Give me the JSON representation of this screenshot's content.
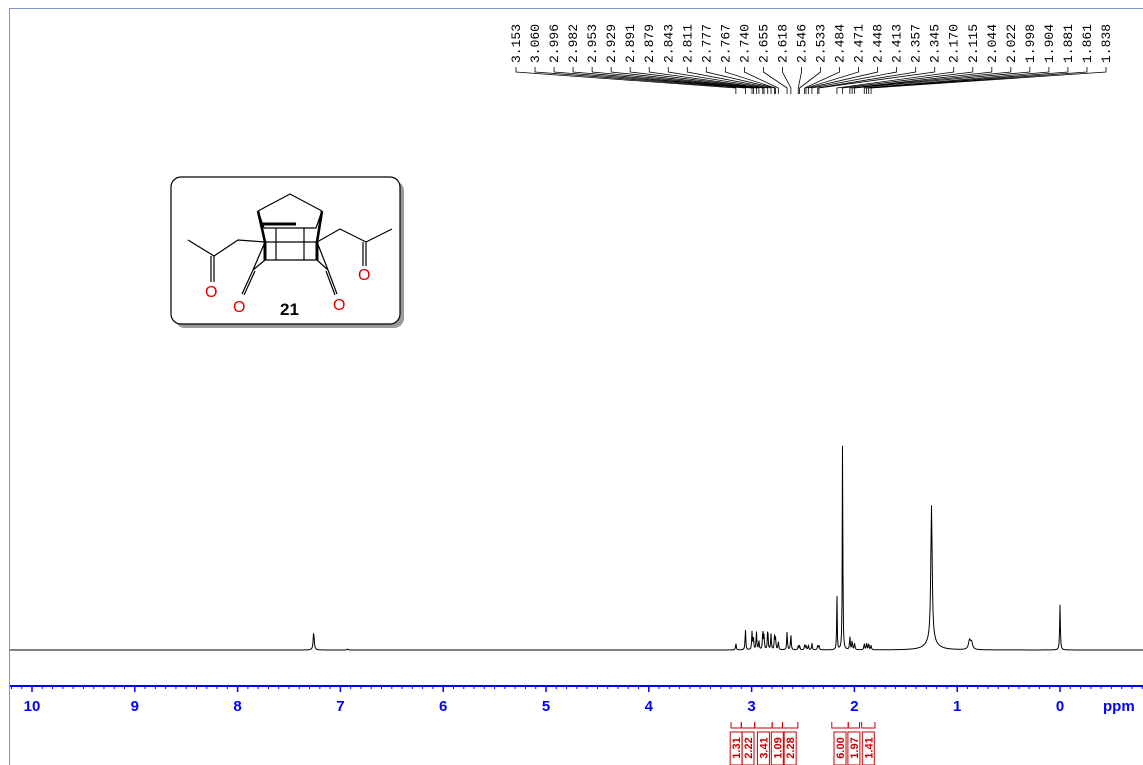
{
  "chart_data": {
    "type": "line",
    "xlabel": "ppm",
    "xlim": [
      10.25,
      -0.8
    ],
    "x_reversed": true,
    "x_ticks": [
      10,
      9,
      8,
      7,
      6,
      5,
      4,
      3,
      2,
      1,
      0
    ],
    "axis_color": "#0000ff",
    "trace_color": "#000000",
    "label_color": "#000000",
    "integral_color": "#cc0000",
    "frame_color": "#7c96c6",
    "peak_labels": [
      "3.153",
      "3.060",
      "2.996",
      "2.982",
      "2.953",
      "2.929",
      "2.891",
      "2.879",
      "2.843",
      "2.811",
      "2.777",
      "2.767",
      "2.740",
      "2.655",
      "2.618",
      "2.546",
      "2.533",
      "2.484",
      "2.471",
      "2.448",
      "2.413",
      "2.357",
      "2.345",
      "2.170",
      "2.115",
      "2.044",
      "2.022",
      "1.998",
      "1.904",
      "1.881",
      "1.861",
      "1.838"
    ],
    "peaks": [
      {
        "ppm": 7.26,
        "intensity": 0.08,
        "width": 0.006
      },
      {
        "ppm": 6.93,
        "intensity": 0.004,
        "width": 0.006
      },
      {
        "ppm": 3.153,
        "intensity": 0.03,
        "width": 0.004
      },
      {
        "ppm": 3.06,
        "intensity": 0.09,
        "width": 0.004
      },
      {
        "ppm": 2.996,
        "intensity": 0.08,
        "width": 0.004
      },
      {
        "ppm": 2.982,
        "intensity": 0.05,
        "width": 0.004
      },
      {
        "ppm": 2.953,
        "intensity": 0.08,
        "width": 0.004
      },
      {
        "ppm": 2.929,
        "intensity": 0.04,
        "width": 0.004
      },
      {
        "ppm": 2.891,
        "intensity": 0.09,
        "width": 0.004
      },
      {
        "ppm": 2.879,
        "intensity": 0.06,
        "width": 0.004
      },
      {
        "ppm": 2.843,
        "intensity": 0.1,
        "width": 0.004
      },
      {
        "ppm": 2.811,
        "intensity": 0.07,
        "width": 0.004
      },
      {
        "ppm": 2.777,
        "intensity": 0.06,
        "width": 0.004
      },
      {
        "ppm": 2.767,
        "intensity": 0.05,
        "width": 0.004
      },
      {
        "ppm": 2.74,
        "intensity": 0.04,
        "width": 0.004
      },
      {
        "ppm": 2.655,
        "intensity": 0.08,
        "width": 0.004
      },
      {
        "ppm": 2.618,
        "intensity": 0.07,
        "width": 0.004
      },
      {
        "ppm": 2.546,
        "intensity": 0.02,
        "width": 0.004
      },
      {
        "ppm": 2.533,
        "intensity": 0.02,
        "width": 0.004
      },
      {
        "ppm": 2.484,
        "intensity": 0.02,
        "width": 0.004
      },
      {
        "ppm": 2.471,
        "intensity": 0.02,
        "width": 0.004
      },
      {
        "ppm": 2.448,
        "intensity": 0.02,
        "width": 0.004
      },
      {
        "ppm": 2.413,
        "intensity": 0.03,
        "width": 0.004
      },
      {
        "ppm": 2.357,
        "intensity": 0.02,
        "width": 0.004
      },
      {
        "ppm": 2.345,
        "intensity": 0.02,
        "width": 0.004
      },
      {
        "ppm": 2.17,
        "intensity": 0.25,
        "width": 0.003
      },
      {
        "ppm": 2.115,
        "intensity": 0.96,
        "width": 0.003
      },
      {
        "ppm": 2.044,
        "intensity": 0.06,
        "width": 0.004
      },
      {
        "ppm": 2.022,
        "intensity": 0.04,
        "width": 0.004
      },
      {
        "ppm": 1.998,
        "intensity": 0.03,
        "width": 0.004
      },
      {
        "ppm": 1.904,
        "intensity": 0.03,
        "width": 0.004
      },
      {
        "ppm": 1.881,
        "intensity": 0.03,
        "width": 0.004
      },
      {
        "ppm": 1.861,
        "intensity": 0.03,
        "width": 0.004
      },
      {
        "ppm": 1.838,
        "intensity": 0.02,
        "width": 0.004
      },
      {
        "ppm": 1.25,
        "intensity": 0.6,
        "width": 0.008
      },
      {
        "ppm": 1.25,
        "intensity": 0.04,
        "width": 0.06
      },
      {
        "ppm": 0.88,
        "intensity": 0.04,
        "width": 0.012
      },
      {
        "ppm": 0.86,
        "intensity": 0.03,
        "width": 0.012
      },
      {
        "ppm": 0.0,
        "intensity": 0.2,
        "width": 0.004
      }
    ],
    "integrals": [
      {
        "from": 3.2,
        "to": 3.1,
        "value": "1.31"
      },
      {
        "from": 3.1,
        "to": 2.97,
        "value": "2.22"
      },
      {
        "from": 2.97,
        "to": 2.8,
        "value": "3.41"
      },
      {
        "from": 2.8,
        "to": 2.7,
        "value": "1.09"
      },
      {
        "from": 2.7,
        "to": 2.55,
        "value": "2.28"
      },
      {
        "from": 2.22,
        "to": 2.06,
        "value": "6.00"
      },
      {
        "from": 2.06,
        "to": 1.95,
        "value": "1.97"
      },
      {
        "from": 1.93,
        "to": 1.8,
        "value": "1.41"
      }
    ]
  },
  "structure": {
    "compound_label": "21",
    "atom_O": "O"
  }
}
